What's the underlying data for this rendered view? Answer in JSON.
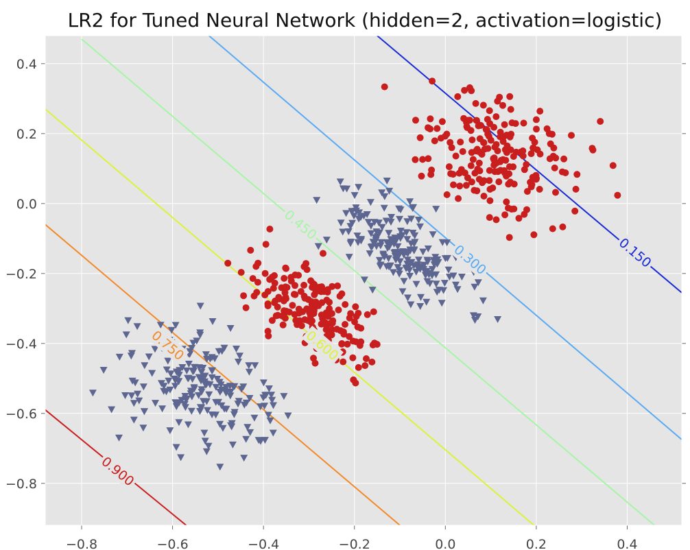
{
  "chart_data": {
    "type": "scatter",
    "title": "LR2 for Tuned Neural Network (hidden=2, activation=logistic)",
    "xlabel": "",
    "ylabel": "",
    "xlim": [
      -0.88,
      0.52
    ],
    "ylim": [
      -0.92,
      0.48
    ],
    "xticks": [
      -0.8,
      -0.6,
      -0.4,
      -0.2,
      0.0,
      0.2,
      0.4
    ],
    "xtick_labels": [
      "−0.8",
      "−0.6",
      "−0.4",
      "−0.2",
      "0.0",
      "0.2",
      "0.4"
    ],
    "yticks": [
      0.4,
      0.2,
      0.0,
      -0.2,
      -0.4,
      -0.6,
      -0.8
    ],
    "ytick_labels": [
      "0.4",
      "0.2",
      "0.0",
      "−0.2",
      "−0.4",
      "−0.6",
      "−0.8"
    ],
    "grid": true,
    "background": "#e5e5e5",
    "contours": [
      {
        "level": 0.15,
        "label": "0.150",
        "color": "#1a2bd6",
        "line": [
          [
            -0.15,
            0.48
          ],
          [
            0.52,
            -0.255
          ]
        ],
        "label_at": [
          0.418,
          -0.14
        ]
      },
      {
        "level": 0.3,
        "label": "0.300",
        "color": "#5aaaf2",
        "line": [
          [
            -0.52,
            0.48
          ],
          [
            0.52,
            -0.675
          ]
        ],
        "label_at": [
          0.055,
          -0.16
        ]
      },
      {
        "level": 0.45,
        "label": "0.450",
        "color": "#a6f5a6",
        "line": [
          [
            -0.8,
            0.47
          ],
          [
            0.46,
            -0.92
          ]
        ],
        "label_at": [
          -0.318,
          -0.06
        ]
      },
      {
        "level": 0.6,
        "label": "0.600",
        "color": "#dcf23c",
        "line": [
          [
            -0.88,
            0.27
          ],
          [
            0.195,
            -0.92
          ]
        ],
        "label_at": [
          -0.27,
          -0.405
        ]
      },
      {
        "level": 0.75,
        "label": "0.750",
        "color": "#f28a2a",
        "line": [
          [
            -0.88,
            -0.06
          ],
          [
            -0.1,
            -0.92
          ]
        ],
        "label_at": [
          -0.61,
          -0.405
        ]
      },
      {
        "level": 0.9,
        "label": "0.900",
        "color": "#c81e1e",
        "line": [
          [
            -0.88,
            -0.59
          ],
          [
            -0.57,
            -0.92
          ]
        ],
        "label_at": [
          -0.72,
          -0.765
        ]
      }
    ],
    "series": [
      {
        "marker": "circle",
        "color": "#c81e1e",
        "clusters": [
          {
            "center": [
              0.12,
              0.13
            ],
            "axis": [
              0.76,
              -0.65
            ],
            "spread_major": 0.1,
            "spread_minor": 0.075,
            "n": 200
          },
          {
            "center": [
              -0.3,
              -0.3
            ],
            "axis": [
              0.62,
              -0.78
            ],
            "spread_major": 0.085,
            "spread_minor": 0.045,
            "n": 200
          }
        ]
      },
      {
        "marker": "triangle-down",
        "color": "#5d6690",
        "clusters": [
          {
            "center": [
              -0.1,
              -0.13
            ],
            "axis": [
              0.62,
              -0.78
            ],
            "spread_major": 0.1,
            "spread_minor": 0.045,
            "n": 200
          },
          {
            "center": [
              -0.55,
              -0.53
            ],
            "axis": [
              0.75,
              -0.66
            ],
            "spread_major": 0.1,
            "spread_minor": 0.065,
            "n": 200
          }
        ]
      }
    ]
  }
}
